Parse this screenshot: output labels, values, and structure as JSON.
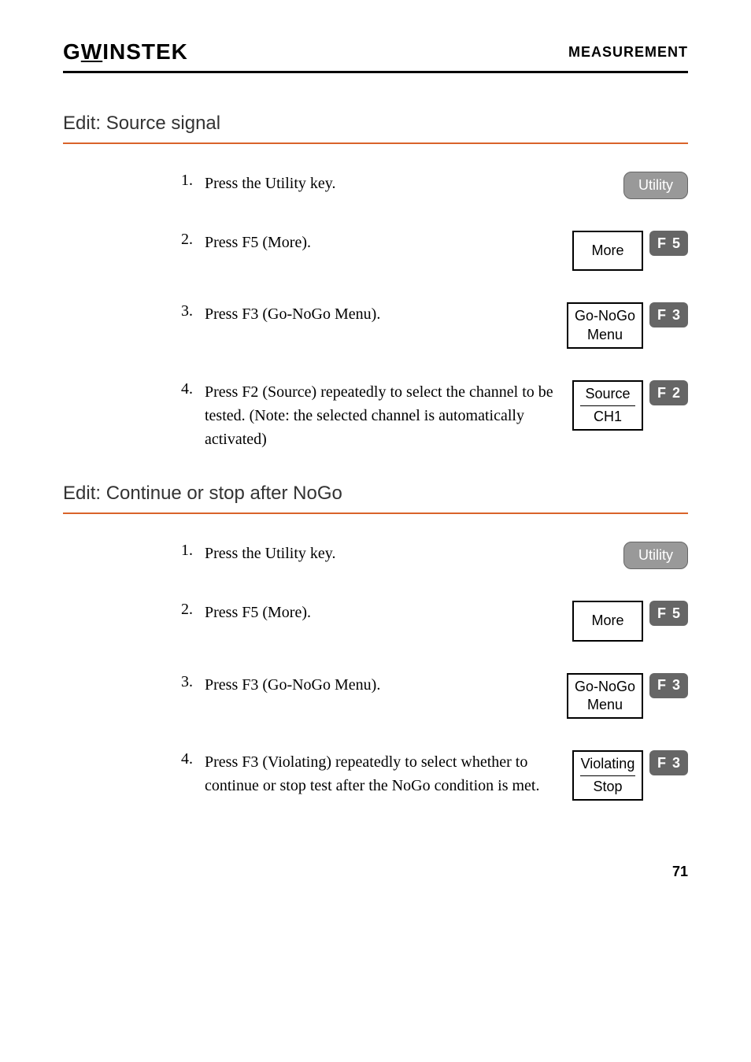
{
  "header": {
    "logo_prefix": "G",
    "logo_special": "W",
    "logo_suffix": "INSTEK",
    "right_text": "MEASUREMENT"
  },
  "section1": {
    "title": "Edit: Source signal",
    "divider_color": "#d9632a",
    "steps": [
      {
        "number": "1.",
        "text": "Press the Utility key.",
        "control_type": "utility",
        "control_label": "Utility"
      },
      {
        "number": "2.",
        "text": "Press F5 (More).",
        "control_type": "menu_fkey",
        "menu_label": "More",
        "fkey_label": "F",
        "fkey_num": "5"
      },
      {
        "number": "3.",
        "text": "Press F3 (Go-NoGo Menu).",
        "control_type": "menu_fkey",
        "menu_label_line1": "Go-NoGo",
        "menu_label_line2": "Menu",
        "fkey_label": "F",
        "fkey_num": "3"
      },
      {
        "number": "4.",
        "text": "Press F2 (Source) repeatedly to select the channel to be tested. (Note: the selected channel is automatically activated)",
        "control_type": "menu_fkey_divided",
        "menu_label_line1": "Source",
        "menu_label_line2": "CH1",
        "fkey_label": "F",
        "fkey_num": "2"
      }
    ]
  },
  "section2": {
    "title": "Edit: Continue or stop after NoGo",
    "divider_color": "#d9632a",
    "steps": [
      {
        "number": "1.",
        "text": "Press the Utility key.",
        "control_type": "utility",
        "control_label": "Utility"
      },
      {
        "number": "2.",
        "text": "Press F5 (More).",
        "control_type": "menu_fkey",
        "menu_label": "More",
        "fkey_label": "F",
        "fkey_num": "5"
      },
      {
        "number": "3.",
        "text": "Press F3 (Go-NoGo Menu).",
        "control_type": "menu_fkey",
        "menu_label_line1": "Go-NoGo",
        "menu_label_line2": "Menu",
        "fkey_label": "F",
        "fkey_num": "3"
      },
      {
        "number": "4.",
        "text": "Press F3 (Violating) repeatedly to select whether to continue or stop test after the NoGo condition is met.",
        "control_type": "menu_fkey_divided",
        "menu_label_line1": "Violating",
        "menu_label_line2": "Stop",
        "fkey_label": "F",
        "fkey_num": "3"
      }
    ]
  },
  "page_number": "71",
  "colors": {
    "utility_bg": "#999999",
    "utility_text": "#ffffff",
    "fkey_bg": "#666666",
    "fkey_text": "#ffffff",
    "divider": "#d9632a",
    "header_border": "#000000"
  }
}
